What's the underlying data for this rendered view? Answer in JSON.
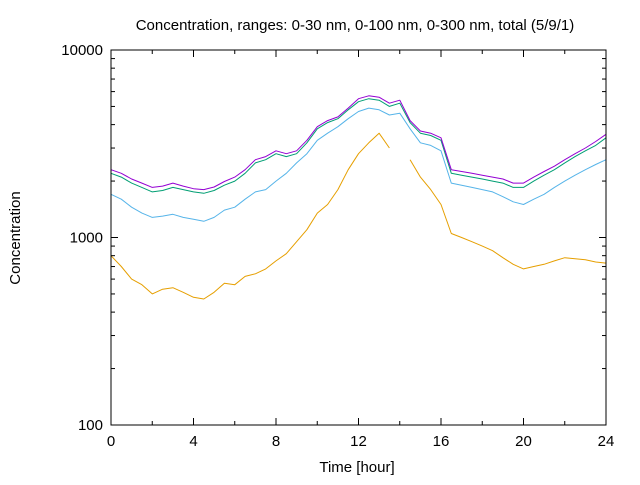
{
  "chart_data": {
    "type": "line",
    "title": "Concentration, ranges: 0-30 nm, 0-100 nm, 0-300 nm, total (5/9/1)",
    "xlabel": "Time [hour]",
    "ylabel": "Concentration",
    "xlim": [
      0,
      24
    ],
    "ylim": [
      100,
      10000
    ],
    "yscale": "log",
    "grid": false,
    "legend": "none",
    "x_ticks": [
      0,
      4,
      8,
      12,
      16,
      20,
      24
    ],
    "x_tick_labels": [
      "0",
      "4",
      "8",
      "12",
      "16",
      "20",
      "24"
    ],
    "y_ticks": [
      100,
      1000,
      10000
    ],
    "y_tick_labels": [
      "100",
      "1000",
      "10000"
    ],
    "x": [
      0,
      0.5,
      1,
      1.5,
      2,
      2.5,
      3,
      3.5,
      4,
      4.5,
      5,
      5.5,
      6,
      6.5,
      7,
      7.5,
      8,
      8.5,
      9,
      9.5,
      10,
      10.5,
      11,
      11.5,
      12,
      12.5,
      13,
      13.5,
      14,
      14.5,
      15,
      15.5,
      16,
      16.5,
      17,
      17.5,
      18,
      18.5,
      19,
      19.5,
      20,
      20.5,
      21,
      21.5,
      22,
      22.5,
      23,
      23.5,
      24
    ],
    "series": [
      {
        "color": "#e69f00",
        "values": [
          800,
          700,
          600,
          560,
          500,
          530,
          540,
          510,
          480,
          470,
          510,
          570,
          560,
          620,
          640,
          680,
          750,
          820,
          950,
          1100,
          1350,
          1500,
          1800,
          2300,
          2800,
          3200,
          3600,
          3000,
          null,
          2600,
          2100,
          1800,
          1500,
          1050,
          1000,
          950,
          900,
          850,
          780,
          720,
          680,
          700,
          720,
          750,
          780,
          770,
          760,
          740,
          730
        ]
      },
      {
        "color": "#56b4e9",
        "values": [
          1700,
          1600,
          1450,
          1350,
          1280,
          1300,
          1330,
          1280,
          1250,
          1220,
          1280,
          1400,
          1450,
          1600,
          1750,
          1800,
          2000,
          2200,
          2500,
          2800,
          3300,
          3600,
          3900,
          4300,
          4700,
          4900,
          4800,
          4500,
          4600,
          3800,
          3200,
          3100,
          2900,
          1950,
          1900,
          1850,
          1800,
          1750,
          1650,
          1550,
          1500,
          1600,
          1700,
          1850,
          2000,
          2150,
          2300,
          2450,
          2600
        ]
      },
      {
        "color": "#009e73",
        "values": [
          2200,
          2100,
          1950,
          1850,
          1750,
          1780,
          1850,
          1800,
          1750,
          1720,
          1780,
          1900,
          2000,
          2200,
          2500,
          2600,
          2800,
          2700,
          2800,
          3200,
          3800,
          4100,
          4300,
          4800,
          5300,
          5500,
          5400,
          5000,
          5200,
          4100,
          3600,
          3500,
          3300,
          2200,
          2150,
          2100,
          2050,
          2000,
          1950,
          1850,
          1850,
          2000,
          2150,
          2300,
          2500,
          2700,
          2900,
          3100,
          3400
        ]
      },
      {
        "color": "#9400d3",
        "values": [
          2300,
          2200,
          2050,
          1950,
          1850,
          1880,
          1950,
          1880,
          1820,
          1800,
          1860,
          1990,
          2100,
          2300,
          2600,
          2700,
          2900,
          2800,
          2900,
          3300,
          3900,
          4200,
          4400,
          4900,
          5500,
          5700,
          5600,
          5200,
          5400,
          4200,
          3700,
          3600,
          3400,
          2300,
          2250,
          2200,
          2150,
          2100,
          2050,
          1950,
          1950,
          2100,
          2250,
          2400,
          2600,
          2800,
          3000,
          3250,
          3550
        ]
      }
    ]
  }
}
